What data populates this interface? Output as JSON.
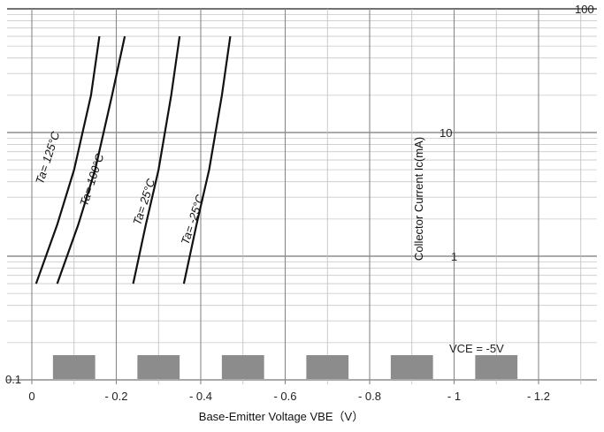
{
  "chart_data": {
    "type": "line",
    "xlabel": "Base-Emitter Voltage  VBE（V）",
    "ylabel": "Collector Current   Ic(mA)",
    "xlim": [
      0,
      -1.3
    ],
    "ylim": [
      0.1,
      100
    ],
    "y_scale": "log",
    "grid": true,
    "x_ticks": [
      "0",
      "- 0.2",
      "- 0.4",
      "- 0.6",
      "- 0.8",
      "- 1",
      "- 1.2"
    ],
    "x_tick_values": [
      0,
      -0.2,
      -0.4,
      -0.6,
      -0.8,
      -1.0,
      -1.2
    ],
    "y_ticks": [
      "0.1",
      "1",
      "10",
      "100"
    ],
    "y_tick_values": [
      0.1,
      1,
      10,
      100
    ],
    "annotation": "VCE = -5V",
    "series": [
      {
        "name": "Ta= 125°C",
        "x": [
          -0.01,
          -0.06,
          -0.1,
          -0.14,
          -0.16
        ],
        "y": [
          0.6,
          1.8,
          5,
          20,
          60
        ]
      },
      {
        "name": "Ta= 100°C",
        "x": [
          -0.06,
          -0.11,
          -0.15,
          -0.19,
          -0.22
        ],
        "y": [
          0.6,
          1.8,
          5,
          20,
          60
        ]
      },
      {
        "name": "Ta= 25°C",
        "x": [
          -0.24,
          -0.27,
          -0.3,
          -0.33,
          -0.35
        ],
        "y": [
          0.6,
          1.8,
          5,
          20,
          60
        ]
      },
      {
        "name": "Ta= -25°C",
        "x": [
          -0.36,
          -0.39,
          -0.42,
          -0.45,
          -0.47
        ],
        "y": [
          0.6,
          1.8,
          5,
          20,
          60
        ]
      }
    ]
  }
}
